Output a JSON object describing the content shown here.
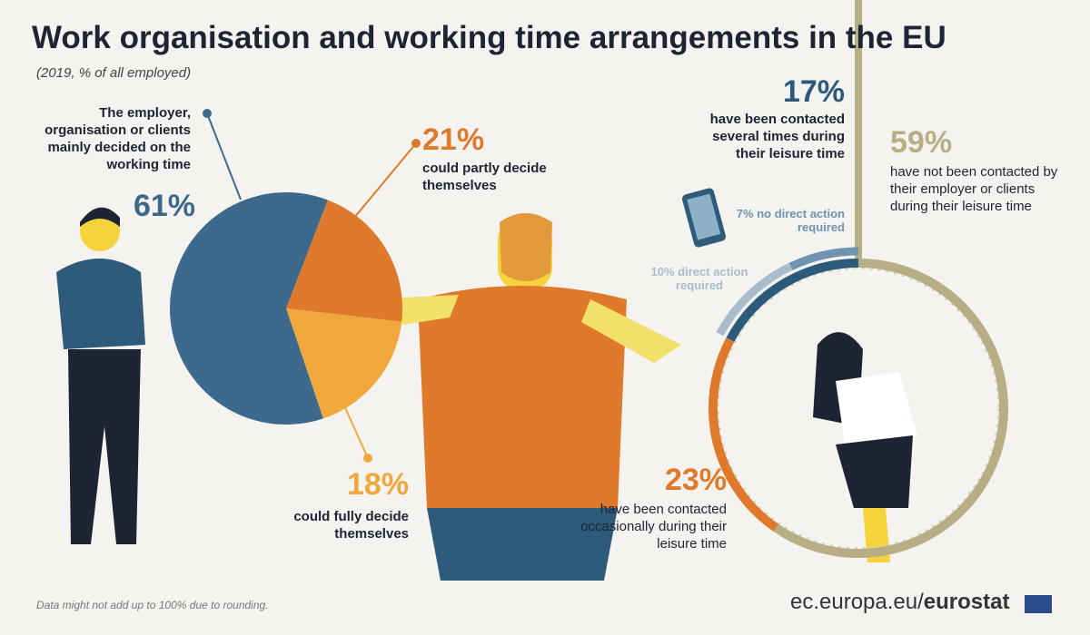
{
  "title": "Work organisation and working time arrangements in the EU",
  "subtitle": "(2019, % of all employed)",
  "footnote": "Data might not add up to 100% due to rounding.",
  "source": {
    "domain": "ec.europa.eu/",
    "brand": "eurostat"
  },
  "chart_data": [
    {
      "type": "pie",
      "categories": [
        "The employer, organisation or clients mainly decided on the working time",
        "could partly decide themselves",
        "could fully decide themselves"
      ],
      "values": [
        61,
        21,
        18
      ],
      "value_labels": [
        "61%",
        "21%",
        "18%"
      ],
      "colors": [
        "#3d6a8c",
        "#df7a2c",
        "#f0a83c"
      ]
    },
    {
      "type": "donut",
      "categories": [
        "have been contacted several times during their leisure time",
        "have not been contacted by their employer or clients during their leisure time",
        "have been contacted occasionally during their leisure time"
      ],
      "values": [
        17,
        59,
        23
      ],
      "value_labels": [
        "17%",
        "59%",
        "23%"
      ],
      "colors": [
        "#2c5a7b",
        "#b7ae86",
        "#df7a2c"
      ],
      "sub_categories": [
        "7% no direct action required",
        "10% direct action required"
      ],
      "sub_values": [
        7,
        10
      ],
      "sub_colors": [
        "#6f93b0",
        "#a9bccb"
      ]
    }
  ]
}
